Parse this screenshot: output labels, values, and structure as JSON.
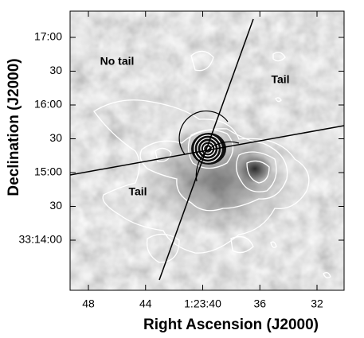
{
  "axes": {
    "x_label": "Right Ascension (J2000)",
    "y_label": "Declination (J2000)",
    "x_ticks": [
      "48",
      "44",
      "1:23:40",
      "36",
      "32"
    ],
    "y_ticks": [
      "17:00",
      "30",
      "16:00",
      "30",
      "15:00",
      "30",
      "33:14:00"
    ]
  },
  "annotations": [
    "No tail",
    "Tail",
    "Tail"
  ]
}
